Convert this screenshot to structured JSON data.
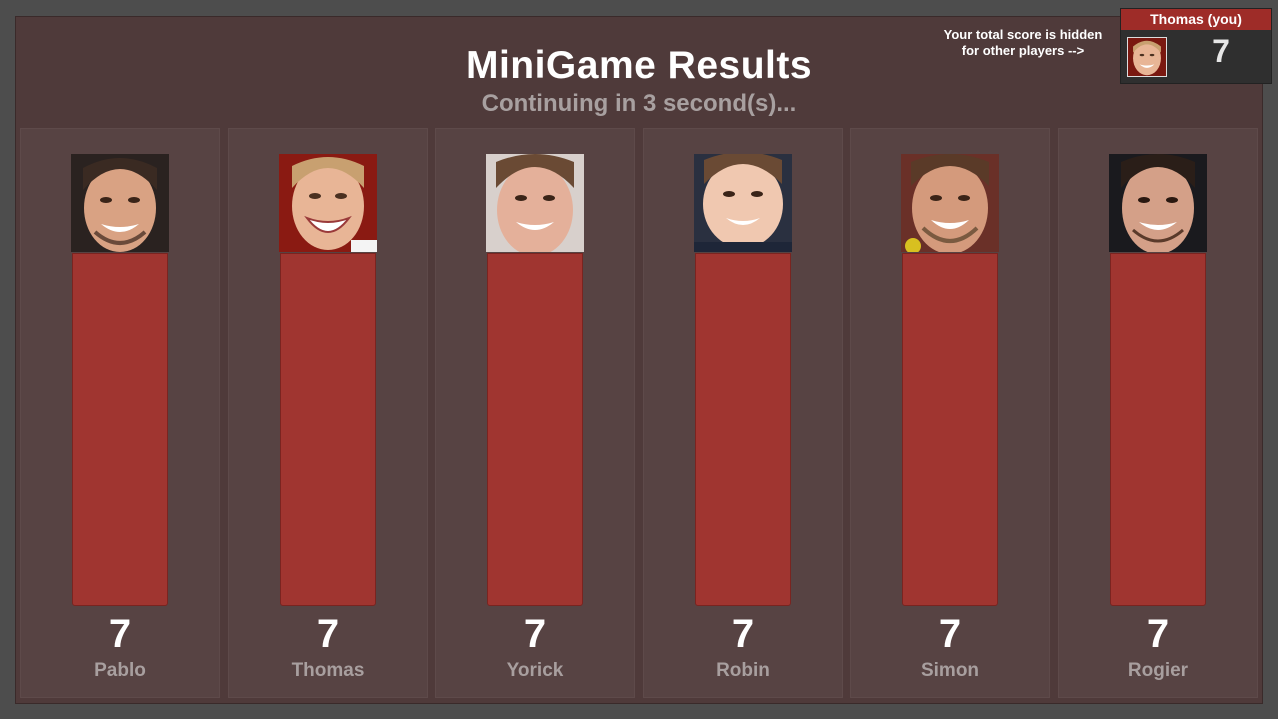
{
  "title": "MiniGame Results",
  "subtitle": "Continuing in 3 second(s)...",
  "hint": {
    "line1": "Your total score is hidden",
    "line2": "for other players -->"
  },
  "me": {
    "name": "Thomas (you)",
    "score": "7"
  },
  "colors": {
    "bar": "#a03530",
    "panel": "#574343",
    "frame": "#4f3a3a",
    "header": "#9e2c28"
  },
  "players": [
    {
      "name": "Pablo",
      "score": "7",
      "fill": 1.0
    },
    {
      "name": "Thomas",
      "score": "7",
      "fill": 1.0
    },
    {
      "name": "Yorick",
      "score": "7",
      "fill": 1.0
    },
    {
      "name": "Robin",
      "score": "7",
      "fill": 1.0
    },
    {
      "name": "Simon",
      "score": "7",
      "fill": 1.0
    },
    {
      "name": "Rogier",
      "score": "7",
      "fill": 1.0
    }
  ]
}
